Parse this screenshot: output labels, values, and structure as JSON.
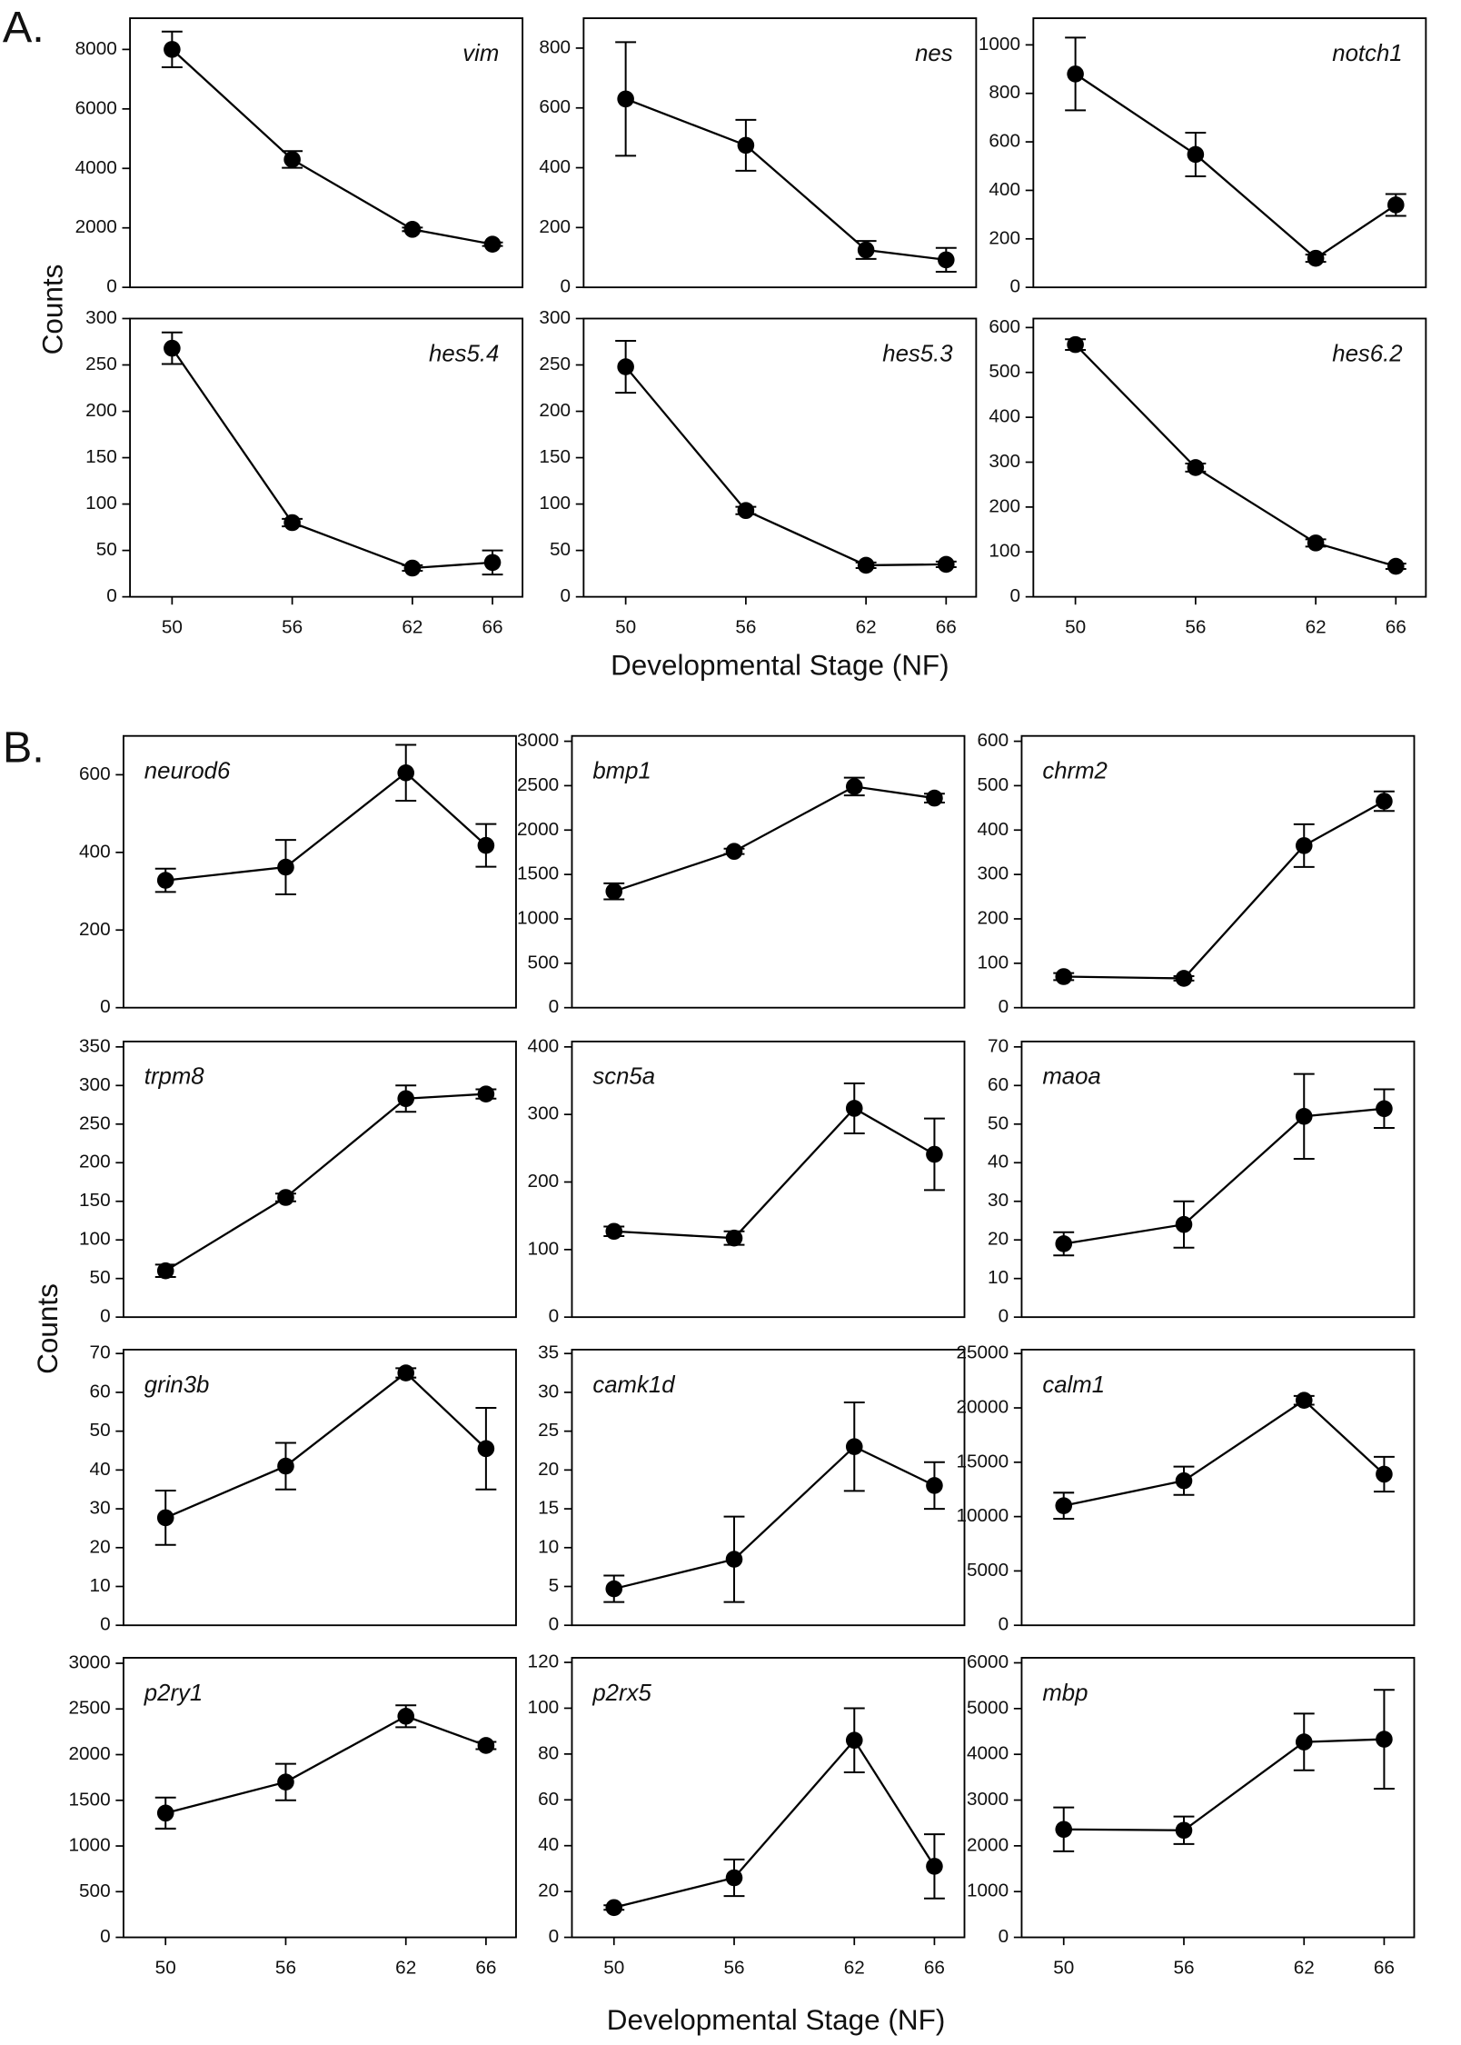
{
  "panels": [
    {
      "label": "A.",
      "ylabel": "Counts",
      "xlabel": "Developmental Stage (NF)"
    },
    {
      "label": "B.",
      "ylabel": "Counts",
      "xlabel": "Developmental Stage (NF)"
    }
  ],
  "chart_data": [
    {
      "type": "line",
      "title": "vim",
      "x": [
        50,
        56,
        62,
        66
      ],
      "values": [
        8000,
        4300,
        1950,
        1450
      ],
      "errors": [
        600,
        280,
        60,
        60
      ],
      "xlim": [
        47.9,
        67.5
      ],
      "ylim": [
        0,
        9050
      ],
      "yticks": [
        0,
        2000,
        4000,
        6000,
        8000
      ],
      "color": "#000000"
    },
    {
      "type": "line",
      "title": "nes",
      "x": [
        50,
        56,
        62,
        66
      ],
      "values": [
        630,
        475,
        125,
        92
      ],
      "errors": [
        190,
        85,
        30,
        40
      ],
      "xlim": [
        47.9,
        67.5
      ],
      "ylim": [
        0,
        900
      ],
      "yticks": [
        0,
        200,
        400,
        600,
        800
      ],
      "color": "#000000"
    },
    {
      "type": "line",
      "title": "notch1",
      "x": [
        50,
        56,
        62,
        66
      ],
      "values": [
        880,
        548,
        120,
        340
      ],
      "errors": [
        150,
        90,
        15,
        45
      ],
      "xlim": [
        47.9,
        67.5
      ],
      "ylim": [
        0,
        1110
      ],
      "yticks": [
        0,
        200,
        400,
        600,
        800,
        1000
      ],
      "color": "#000000"
    },
    {
      "type": "line",
      "title": "hes5.4",
      "x": [
        50,
        56,
        62,
        66
      ],
      "values": [
        268,
        80,
        31,
        37
      ],
      "errors": [
        17,
        4,
        3,
        13
      ],
      "xlim": [
        47.9,
        67.5
      ],
      "xticks": [
        50,
        56,
        62,
        66
      ],
      "ylim": [
        0,
        300
      ],
      "yticks": [
        0,
        50,
        100,
        150,
        200,
        250,
        300
      ],
      "color": "#000000"
    },
    {
      "type": "line",
      "title": "hes5.3",
      "x": [
        50,
        56,
        62,
        66
      ],
      "values": [
        248,
        93,
        34,
        35
      ],
      "errors": [
        28,
        4,
        3,
        3
      ],
      "xlim": [
        47.9,
        67.5
      ],
      "xticks": [
        50,
        56,
        62,
        66
      ],
      "ylim": [
        0,
        300
      ],
      "yticks": [
        0,
        50,
        100,
        150,
        200,
        250,
        300
      ],
      "color": "#000000"
    },
    {
      "type": "line",
      "title": "hes6.2",
      "x": [
        50,
        56,
        62,
        66
      ],
      "values": [
        562,
        288,
        120,
        68
      ],
      "errors": [
        12,
        9,
        8,
        6
      ],
      "xlim": [
        47.9,
        67.5
      ],
      "xticks": [
        50,
        56,
        62,
        66
      ],
      "ylim": [
        0,
        620
      ],
      "yticks": [
        0,
        100,
        200,
        300,
        400,
        500,
        600
      ],
      "color": "#000000"
    },
    {
      "type": "line",
      "title": "neurod6",
      "x": [
        50,
        56,
        62,
        66
      ],
      "values": [
        328,
        362,
        605,
        418
      ],
      "errors": [
        30,
        70,
        72,
        55
      ],
      "xlim": [
        47.9,
        67.5
      ],
      "ylim": [
        0,
        700
      ],
      "yticks": [
        0,
        200,
        400,
        600
      ],
      "color": "#000000"
    },
    {
      "type": "line",
      "title": "bmp1",
      "x": [
        50,
        56,
        62,
        66
      ],
      "values": [
        1310,
        1760,
        2490,
        2360
      ],
      "errors": [
        90,
        30,
        100,
        50
      ],
      "xlim": [
        47.9,
        67.5
      ],
      "ylim": [
        0,
        3060
      ],
      "yticks": [
        0,
        500,
        1000,
        1500,
        2000,
        2500,
        3000
      ],
      "color": "#000000"
    },
    {
      "type": "line",
      "title": "chrm2",
      "x": [
        50,
        56,
        62,
        66
      ],
      "values": [
        70,
        66,
        365,
        465
      ],
      "errors": [
        8,
        5,
        48,
        22
      ],
      "xlim": [
        47.9,
        67.5
      ],
      "ylim": [
        0,
        612
      ],
      "yticks": [
        0,
        100,
        200,
        300,
        400,
        500,
        600
      ],
      "color": "#000000"
    },
    {
      "type": "line",
      "title": "trpm8",
      "x": [
        50,
        56,
        62,
        66
      ],
      "values": [
        60,
        155,
        283,
        289
      ],
      "errors": [
        8,
        5,
        17,
        6
      ],
      "xlim": [
        47.9,
        67.5
      ],
      "ylim": [
        0,
        357
      ],
      "yticks": [
        0,
        50,
        100,
        150,
        200,
        250,
        300,
        350
      ],
      "color": "#000000"
    },
    {
      "type": "line",
      "title": "scn5a",
      "x": [
        50,
        56,
        62,
        66
      ],
      "values": [
        127,
        117,
        309,
        241
      ],
      "errors": [
        7,
        10,
        37,
        53
      ],
      "xlim": [
        47.9,
        67.5
      ],
      "ylim": [
        0,
        408
      ],
      "yticks": [
        0,
        100,
        200,
        300,
        400
      ],
      "color": "#000000"
    },
    {
      "type": "line",
      "title": "maoa",
      "x": [
        50,
        56,
        62,
        66
      ],
      "values": [
        19,
        24,
        52,
        54
      ],
      "errors": [
        3,
        6,
        11,
        5
      ],
      "xlim": [
        47.9,
        67.5
      ],
      "ylim": [
        0,
        71.4
      ],
      "yticks": [
        0,
        10,
        20,
        30,
        40,
        50,
        60,
        70
      ],
      "color": "#000000"
    },
    {
      "type": "line",
      "title": "grin3b",
      "x": [
        50,
        56,
        62,
        66
      ],
      "values": [
        27.7,
        41,
        65,
        45.5
      ],
      "errors": [
        7,
        6,
        1.2,
        10.5
      ],
      "xlim": [
        47.9,
        67.5
      ],
      "ylim": [
        0,
        71
      ],
      "yticks": [
        0,
        10,
        20,
        30,
        40,
        50,
        60,
        70
      ],
      "color": "#000000"
    },
    {
      "type": "line",
      "title": "camk1d",
      "x": [
        50,
        56,
        62,
        66
      ],
      "values": [
        4.7,
        8.5,
        23,
        18
      ],
      "errors": [
        1.7,
        5.5,
        5.7,
        3
      ],
      "xlim": [
        47.9,
        67.5
      ],
      "ylim": [
        0,
        35.5
      ],
      "yticks": [
        0,
        5,
        10,
        15,
        20,
        25,
        30,
        35
      ],
      "color": "#000000"
    },
    {
      "type": "line",
      "title": "calm1",
      "x": [
        50,
        56,
        62,
        66
      ],
      "values": [
        11000,
        13300,
        20700,
        13900
      ],
      "errors": [
        1200,
        1300,
        400,
        1600
      ],
      "xlim": [
        47.9,
        67.5
      ],
      "ylim": [
        0,
        25360
      ],
      "yticks": [
        0,
        5000,
        10000,
        15000,
        20000,
        25000
      ],
      "color": "#000000"
    },
    {
      "type": "line",
      "title": "p2ry1",
      "x": [
        50,
        56,
        62,
        66
      ],
      "values": [
        1360,
        1700,
        2420,
        2100
      ],
      "errors": [
        170,
        200,
        120,
        40
      ],
      "xlim": [
        47.9,
        67.5
      ],
      "xticks": [
        50,
        56,
        62,
        66
      ],
      "ylim": [
        0,
        3060
      ],
      "yticks": [
        0,
        500,
        1000,
        1500,
        2000,
        2500,
        3000
      ],
      "color": "#000000"
    },
    {
      "type": "line",
      "title": "p2rx5",
      "x": [
        50,
        56,
        62,
        66
      ],
      "values": [
        13,
        26,
        86,
        31
      ],
      "errors": [
        1,
        8,
        14,
        14
      ],
      "xlim": [
        47.9,
        67.5
      ],
      "xticks": [
        50,
        56,
        62,
        66
      ],
      "ylim": [
        0,
        122
      ],
      "yticks": [
        0,
        20,
        40,
        60,
        80,
        100,
        120
      ],
      "color": "#000000"
    },
    {
      "type": "line",
      "title": "mbp",
      "x": [
        50,
        56,
        62,
        66
      ],
      "values": [
        2360,
        2340,
        4270,
        4330
      ],
      "errors": [
        480,
        300,
        620,
        1080
      ],
      "xlim": [
        47.9,
        67.5
      ],
      "xticks": [
        50,
        56,
        62,
        66
      ],
      "ylim": [
        0,
        6110
      ],
      "yticks": [
        0,
        1000,
        2000,
        3000,
        4000,
        5000,
        6000
      ],
      "color": "#000000"
    }
  ]
}
